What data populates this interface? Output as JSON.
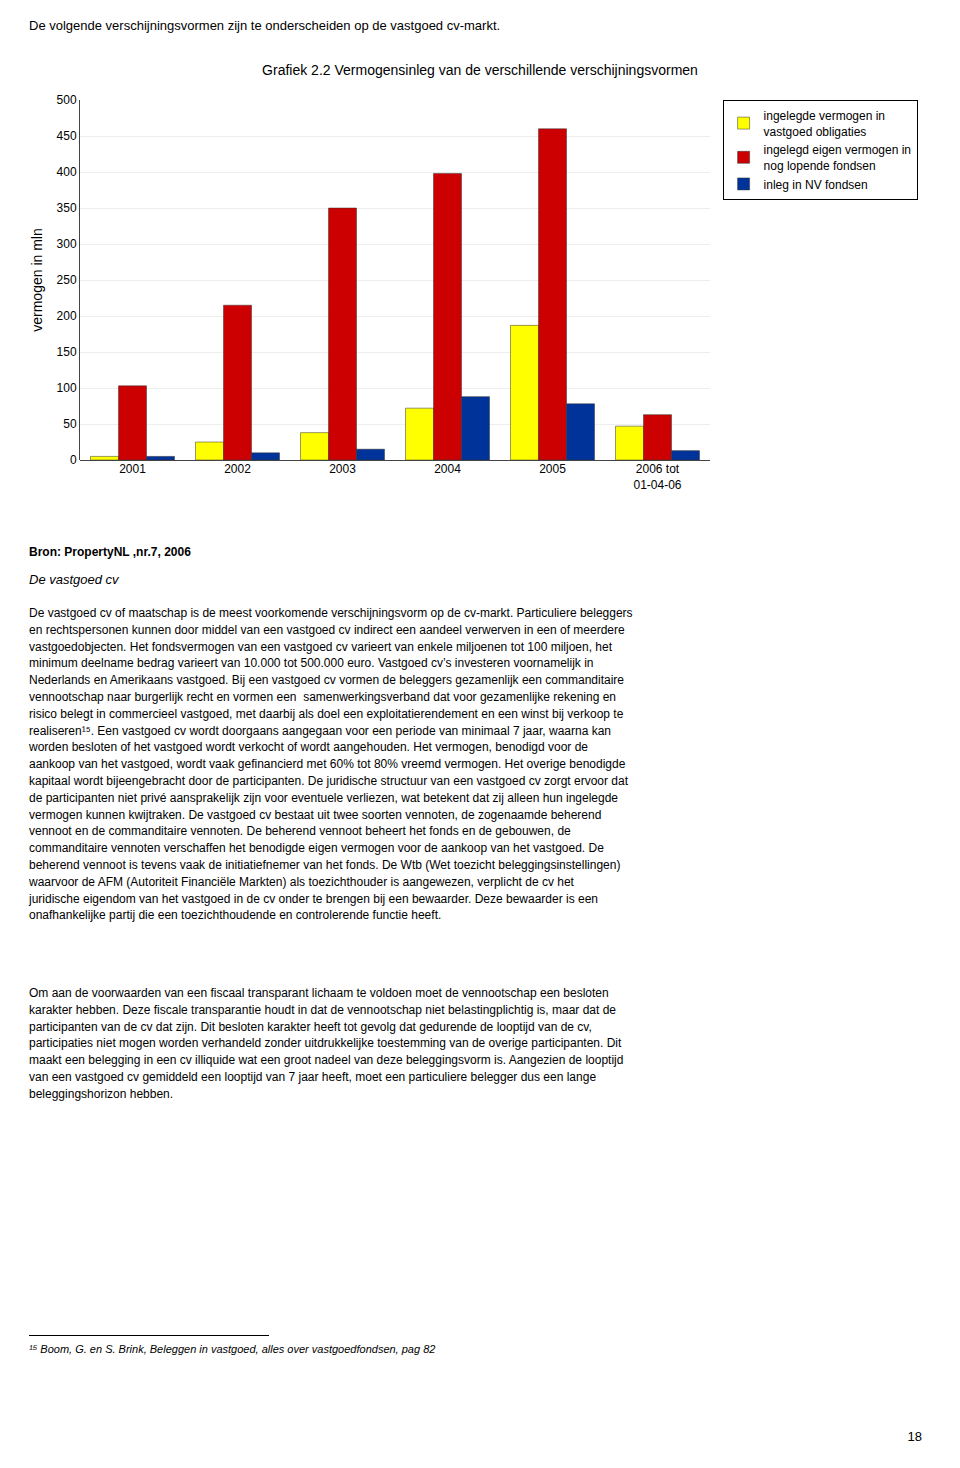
{
  "chart_data": {
    "type": "bar",
    "title": "Grafiek 2.2 Vermogensinleg van de verschillende verschijningsvormen",
    "ylabel": "vermogen in mln",
    "categories": [
      "2001",
      "2002",
      "2003",
      "2004",
      "2005",
      "2006 tot\n01-04-06"
    ],
    "series": [
      {
        "name": "ingelegde vermogen in\nvastgoed obligaties",
        "color": "#FFFF00",
        "values": [
          5,
          25,
          38,
          72,
          187,
          47
        ]
      },
      {
        "name": "ingelegd eigen vermogen in\nnog lopende fondsen",
        "color": "#CC0000",
        "values": [
          103,
          215,
          350,
          398,
          460,
          63
        ]
      },
      {
        "name": "inleg in NV fondsen",
        "color": "#003399",
        "values": [
          5,
          10,
          15,
          88,
          78,
          13
        ]
      }
    ],
    "ylim": [
      0,
      500
    ],
    "yticks": [
      0,
      50,
      100,
      150,
      200,
      250,
      300,
      350,
      400,
      450,
      500
    ],
    "grid": true,
    "legend": "right",
    "annotations": [
      "De volgende verschijningsvormen zijn te onderscheiden op de vastgoed cv-markt.",
      "Bron: PropertyNL ,nr.7, 2006",
      "De vastgoed cv",
      "De vastgoed cv of maatschap is de meest voorkomende verschijningsvorm op de cv-markt. Particuliere beleggers\nen rechtspersonen kunnen door middel van een vastgoed cv indirect een aandeel verwerven in een of meerdere\nvastgoedobjecten. Het fondsvermogen van een vastgoed cv varieert van enkele miljoenen tot 100 miljoen, het\nminimum deelname bedrag varieert van 10.000 tot 500.000 euro. Vastgoed cv’s investeren voornamelijk in\nNederlands en Amerikaans vastgoed. Bij een vastgoed cv vormen de beleggers gezamenlijk een commanditaire\nvennootschap naar burgerlijk recht en vormen een  samenwerkingsverband dat voor gezamenlijke rekening en\nrisico belegt in commercieel vastgoed, met daarbij als doel een exploitatierendement en een winst bij verkoop te\nrealiseren¹⁵. Een vastgoed cv wordt doorgaans aangegaan voor een periode van minimaal 7 jaar, waarna kan\nworden besloten of het vastgoed wordt verkocht of wordt aangehouden. Het vermogen, benodigd voor de\naankoop van het vastgoed, wordt vaak gefinancierd met 60% tot 80% vreemd vermogen. Het overige benodigde\nkapitaal wordt bijeengebracht door de participanten. De juridische structuur van een vastgoed cv zorgt ervoor dat\nde participanten niet privé aansprakelijk zijn voor eventuele verliezen, wat betekent dat zij alleen hun ingelegde\nvermogen kunnen kwijtraken. De vastgoed cv bestaat uit twee soorten vennoten, de zogenaamde beherend\nvennoot en de commanditaire vennoten. De beherend vennoot beheert het fonds en de gebouwen, de\ncommanditaire vennoten verschaffen het benodigde eigen vermogen voor de aankoop van het vastgoed. De\nbeherend vennoot is tevens vaak de initiatiefnemer van het fonds. De Wtb (Wet toezicht beleggingsinstellingen)\nwaarvoor de AFM (Autoriteit Financiële Markten) als toezichthouder is aangewezen, verplicht de cv het\njuridische eigendom van het vastgoed in de cv onder te brengen bij een bewaarder. Deze bewaarder is een\nonafhankelijke partij die een toezichthoudende en controlerende functie heeft.",
      "Om aan de voorwaarden van een fiscaal transparant lichaam te voldoen moet de vennootschap een besloten\nkarakter hebben. Deze fiscale transparantie houdt in dat de vennootschap niet belastingplichtig is, maar dat de\nparticipanten van de cv dat zijn. Dit besloten karakter heeft tot gevolg dat gedurende de looptijd van de cv,\nparticipaties niet mogen worden verhandeld zonder uitdrukkelijke toestemming van de overige participanten. Dit\nmaakt een belegging in een cv illiquide wat een groot nadeel van deze beleggingsvorm is. Aangezien de looptijd\nvan een vastgoed cv gemiddeld een looptijd van 7 jaar heeft, moet een particuliere belegger dus een lange\nbeleggingshorizon hebben.",
      "¹⁵ Boom, G. en S. Brink, Beleggen in vastgoed, alles over vastgoedfondsen, pag 82",
      "18"
    ]
  }
}
